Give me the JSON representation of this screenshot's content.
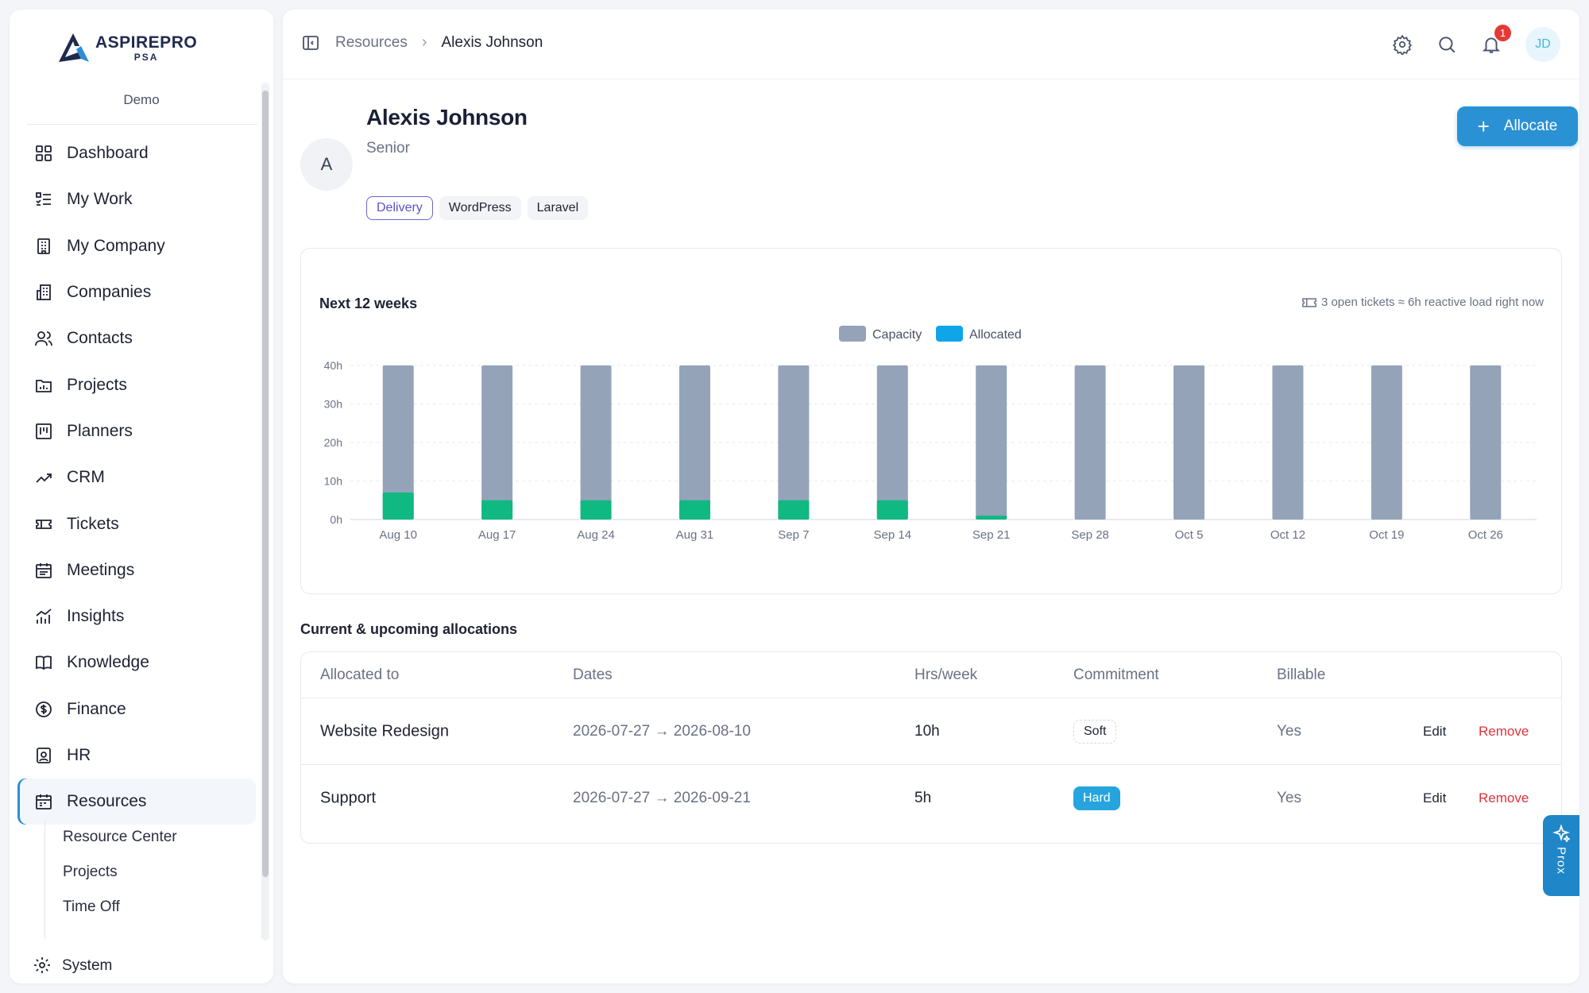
{
  "app": {
    "logo_main": "ASPIREPRO",
    "logo_sub": "PSA",
    "tenant": "Demo"
  },
  "sidebar": {
    "items": [
      {
        "label": "Dashboard",
        "icon": "grid-icon"
      },
      {
        "label": "My Work",
        "icon": "checklist-icon"
      },
      {
        "label": "My Company",
        "icon": "building-icon"
      },
      {
        "label": "Companies",
        "icon": "buildings-icon"
      },
      {
        "label": "Contacts",
        "icon": "users-icon"
      },
      {
        "label": "Projects",
        "icon": "folder-chart-icon"
      },
      {
        "label": "Planners",
        "icon": "kanban-icon"
      },
      {
        "label": "CRM",
        "icon": "trend-icon"
      },
      {
        "label": "Tickets",
        "icon": "ticket-icon"
      },
      {
        "label": "Meetings",
        "icon": "calendar-list-icon"
      },
      {
        "label": "Insights",
        "icon": "bar-chart-icon"
      },
      {
        "label": "Knowledge",
        "icon": "book-icon"
      },
      {
        "label": "Finance",
        "icon": "dollar-icon"
      },
      {
        "label": "HR",
        "icon": "badge-user-icon"
      },
      {
        "label": "Resources",
        "icon": "calendar-icon",
        "active": true
      }
    ],
    "sub_items": [
      "Resource Center",
      "Projects",
      "Time Off"
    ],
    "system_label": "System"
  },
  "topbar": {
    "breadcrumb_parent": "Resources",
    "breadcrumb_current": "Alexis Johnson",
    "notification_count": "1",
    "user_initials": "JD"
  },
  "profile": {
    "avatar_initial": "A",
    "name": "Alexis Johnson",
    "role": "Senior",
    "tags": [
      "Delivery",
      "WordPress",
      "Laravel"
    ],
    "allocate_label": "Allocate"
  },
  "chart": {
    "title": "Next 12 weeks",
    "note": "3 open tickets ≈ 6h reactive load right now"
  },
  "chart_data": {
    "type": "bar",
    "categories": [
      "Aug 10",
      "Aug 17",
      "Aug 24",
      "Aug 31",
      "Sep 7",
      "Sep 14",
      "Sep 21",
      "Sep 28",
      "Oct 5",
      "Oct 12",
      "Oct 19",
      "Oct 26"
    ],
    "series": [
      {
        "name": "Capacity",
        "values": [
          40,
          40,
          40,
          40,
          40,
          40,
          40,
          40,
          40,
          40,
          40,
          40
        ],
        "color": "#94a3b8"
      },
      {
        "name": "Allocated",
        "values": [
          7,
          5,
          5,
          5,
          5,
          5,
          1,
          0,
          0,
          0,
          0,
          0
        ],
        "color": "#10b981"
      }
    ],
    "legend_colors": {
      "Capacity": "#94a3b8",
      "Allocated": "#0ea5e9"
    },
    "y_ticks": [
      "0h",
      "10h",
      "20h",
      "30h",
      "40h"
    ],
    "ylim": [
      0,
      40
    ],
    "grid": true,
    "legend": "top-center",
    "overlay": true
  },
  "allocations": {
    "title": "Current & upcoming allocations",
    "headers": [
      "Allocated to",
      "Dates",
      "Hrs/week",
      "Commitment",
      "Billable"
    ],
    "rows": [
      {
        "name": "Website Redesign",
        "dates": "2026-07-27 → 2026-08-10",
        "hrs": "10h",
        "commitment": "Soft",
        "billable": "Yes",
        "edit": "Edit",
        "remove": "Remove"
      },
      {
        "name": "Support",
        "dates": "2026-07-27 → 2026-09-21",
        "hrs": "5h",
        "commitment": "Hard",
        "billable": "Yes",
        "edit": "Edit",
        "remove": "Remove"
      }
    ]
  },
  "assistant": {
    "label": "Prox"
  }
}
